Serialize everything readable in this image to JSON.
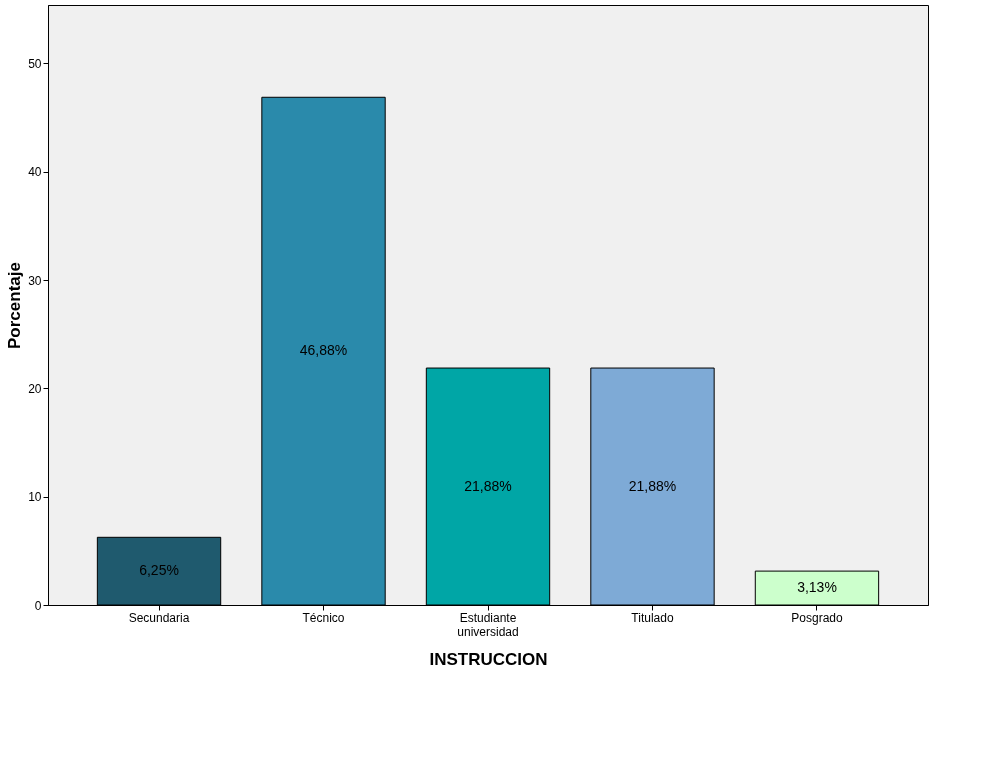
{
  "chart_data": {
    "type": "bar",
    "xlabel": "INSTRUCCION",
    "ylabel": "Porcentaje",
    "categories": [
      "Secundaria",
      "Técnico",
      "Estudiante universidad",
      "Titulado",
      "Posgrado"
    ],
    "values": [
      6.25,
      46.88,
      21.88,
      21.88,
      3.13
    ],
    "colors": [
      "#1f5a6e",
      "#2a8aab",
      "#00a6a6",
      "#7eaad6",
      "#ccffcc"
    ],
    "value_labels": [
      "6,25%",
      "46,88%",
      "21,88%",
      "21,88%",
      "3,13%"
    ],
    "ylim": [
      0,
      55.4
    ],
    "yticks": [
      0,
      10,
      20,
      30,
      40,
      50
    ],
    "grid": false
  }
}
